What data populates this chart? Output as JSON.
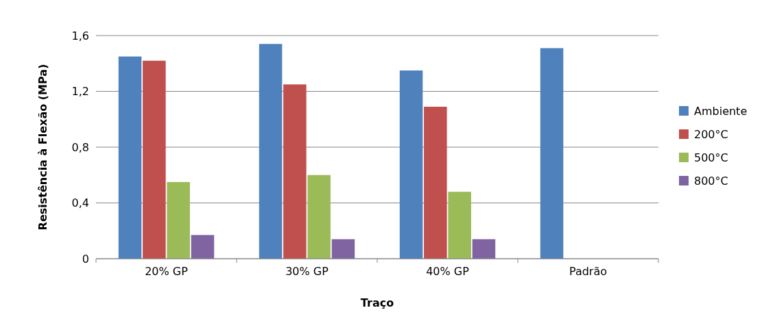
{
  "chart_data": {
    "type": "bar",
    "xlabel": "Traço",
    "ylabel": "Resistência à Flexão (MPa)",
    "categories": [
      "20% GP",
      "30% GP",
      "40% GP",
      "Padrão"
    ],
    "series": [
      {
        "name": "Ambiente",
        "color": "#4f81bd",
        "values": [
          1.45,
          1.54,
          1.35,
          1.51
        ]
      },
      {
        "name": "200°C",
        "color": "#c0504d",
        "values": [
          1.42,
          1.25,
          1.09,
          null
        ]
      },
      {
        "name": "500°C",
        "color": "#9bbb59",
        "values": [
          0.55,
          0.6,
          0.48,
          null
        ]
      },
      {
        "name": "800°C",
        "color": "#8064a2",
        "values": [
          0.17,
          0.14,
          0.14,
          null
        ]
      }
    ],
    "ylim": [
      0,
      1.6
    ],
    "yticks": [
      0,
      {
        "value": 0.4,
        "label": "0,4"
      },
      {
        "value": 0.8,
        "label": "0,8"
      },
      {
        "value": 1.2,
        "label": "1,2"
      },
      {
        "value": 1.6,
        "label": "1,6"
      }
    ],
    "grid": "y",
    "legend": "right"
  }
}
